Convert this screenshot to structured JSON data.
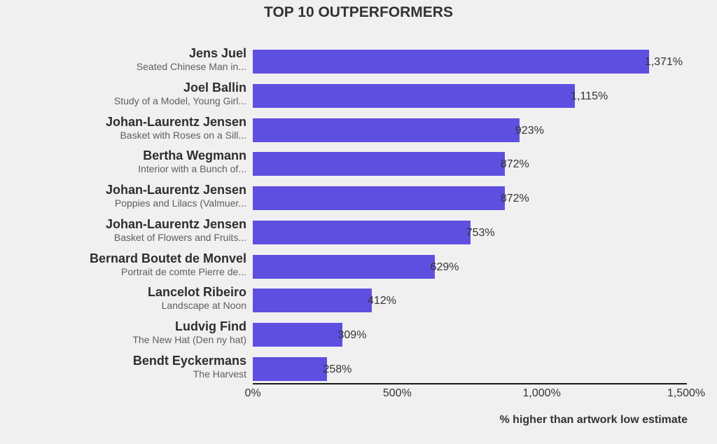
{
  "chart_data": {
    "type": "bar",
    "orientation": "horizontal",
    "title": "TOP 10 OUTPERFORMERS",
    "xlabel": "% higher than artwork low estimate",
    "ylabel": "",
    "xlim": [
      0,
      1500
    ],
    "xticks": [
      0,
      500,
      1000,
      1500
    ],
    "xtick_labels": [
      "0%",
      "500%",
      "1,000%",
      "1,500%"
    ],
    "bar_color": "#5f4fe0",
    "grid": false,
    "rows": [
      {
        "artist": "Jens Juel",
        "work": "Seated Chinese Man in...",
        "value": 1371,
        "label": "1,371%"
      },
      {
        "artist": "Joel Ballin",
        "work": "Study of a Model, Young Girl...",
        "value": 1115,
        "label": "1,115%"
      },
      {
        "artist": "Johan-Laurentz Jensen",
        "work": "Basket with Roses on a Sill...",
        "value": 923,
        "label": "923%"
      },
      {
        "artist": "Bertha Wegmann",
        "work": "Interior with a Bunch of...",
        "value": 872,
        "label": "872%"
      },
      {
        "artist": "Johan-Laurentz Jensen",
        "work": "Poppies and Lilacs (Valmuer...",
        "value": 872,
        "label": "872%"
      },
      {
        "artist": "Johan-Laurentz Jensen",
        "work": "Basket of Flowers and Fruits...",
        "value": 753,
        "label": "753%"
      },
      {
        "artist": "Bernard Boutet de Monvel",
        "work": "Portrait de comte Pierre de...",
        "value": 629,
        "label": "629%"
      },
      {
        "artist": "Lancelot Ribeiro",
        "work": "Landscape at Noon",
        "value": 412,
        "label": "412%"
      },
      {
        "artist": "Ludvig Find",
        "work": "The New Hat (Den ny hat)",
        "value": 309,
        "label": "309%"
      },
      {
        "artist": "Bendt Eyckermans",
        "work": "The Harvest",
        "value": 258,
        "label": "258%"
      }
    ]
  }
}
